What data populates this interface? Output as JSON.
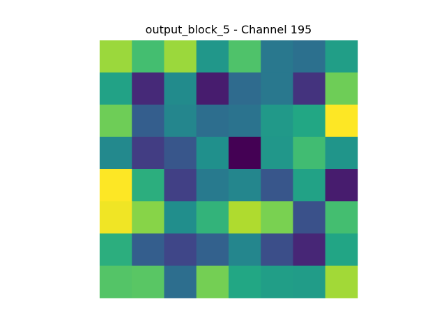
{
  "chart_data": {
    "type": "heatmap",
    "title": "output_block_5 - Channel 195",
    "colormap": "viridis",
    "rows": 8,
    "cols": 8,
    "axis_visible": false,
    "values": [
      [
        0.85,
        0.7,
        0.85,
        0.53,
        0.72,
        0.4,
        0.37,
        0.56
      ],
      [
        0.58,
        0.12,
        0.48,
        0.08,
        0.35,
        0.4,
        0.15,
        0.78
      ],
      [
        0.78,
        0.3,
        0.46,
        0.36,
        0.38,
        0.54,
        0.6,
        1.0
      ],
      [
        0.47,
        0.18,
        0.27,
        0.5,
        0.0,
        0.53,
        0.69,
        0.52
      ],
      [
        1.0,
        0.63,
        0.19,
        0.41,
        0.46,
        0.27,
        0.58,
        0.08
      ],
      [
        0.98,
        0.82,
        0.49,
        0.65,
        0.88,
        0.8,
        0.25,
        0.7
      ],
      [
        0.63,
        0.3,
        0.21,
        0.31,
        0.46,
        0.24,
        0.11,
        0.59
      ],
      [
        0.73,
        0.74,
        0.36,
        0.79,
        0.6,
        0.56,
        0.55,
        0.86
      ]
    ]
  }
}
